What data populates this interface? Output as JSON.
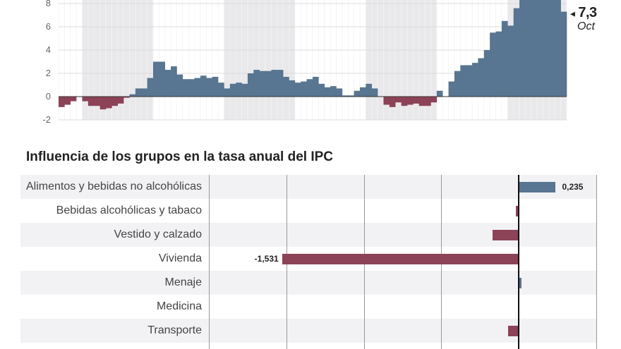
{
  "colors": {
    "positive": "#587591",
    "negative": "#8c4257",
    "recession_shade": "#e9e9eb",
    "grid": "#dcdcdc",
    "row_shade": "#f2f2f4"
  },
  "top_chart": {
    "last_value": "7,3",
    "last_month": "Oct",
    "y_ticks": [
      "8",
      "6",
      "4",
      "2",
      "0",
      "-2"
    ]
  },
  "bottom_chart": {
    "title": "Influencia de los grupos en la tasa anual del IPC",
    "rows": [
      {
        "label": "Alimentos y bebidas no alcohólicas",
        "value": 0.235,
        "value_label": "0,235"
      },
      {
        "label": "Bebidas alcohólicas y tabaco",
        "value": -0.02,
        "value_label": ""
      },
      {
        "label": "Vestido y calzado",
        "value": -0.17,
        "value_label": ""
      },
      {
        "label": "Vivienda",
        "value": -1.531,
        "value_label": "-1,531"
      },
      {
        "label": "Menaje",
        "value": 0.01,
        "value_label": ""
      },
      {
        "label": "Medicina",
        "value": 0.0,
        "value_label": ""
      },
      {
        "label": "Transporte",
        "value": -0.07,
        "value_label": ""
      }
    ]
  },
  "chart_data": [
    {
      "type": "bar",
      "title": "",
      "xlabel": "",
      "ylabel": "",
      "ylim": [
        -2,
        8.5
      ],
      "y_ticks": [
        -2,
        0,
        2,
        4,
        6,
        8
      ],
      "grid": true,
      "annotation": {
        "text": "7,3",
        "sublabel": "Oct"
      },
      "shaded_bands_bar_index": [
        [
          4,
          15
        ],
        [
          28,
          39
        ],
        [
          52,
          63
        ],
        [
          76,
          85
        ]
      ],
      "values": [
        -0.9,
        -0.7,
        -0.4,
        0.0,
        -0.4,
        -0.8,
        -0.8,
        -1.1,
        -1.0,
        -0.8,
        -0.6,
        -0.1,
        0.2,
        0.7,
        0.7,
        1.6,
        3.0,
        3.0,
        2.3,
        2.6,
        1.9,
        1.5,
        1.5,
        1.6,
        1.8,
        1.6,
        1.7,
        1.2,
        0.7,
        1.1,
        1.2,
        1.1,
        2.0,
        2.3,
        2.2,
        2.2,
        2.3,
        2.3,
        1.7,
        1.4,
        1.2,
        1.3,
        1.5,
        1.7,
        1.1,
        0.8,
        0.9,
        0.7,
        0.1,
        0.1,
        0.5,
        0.8,
        1.1,
        0.7,
        0.0,
        -0.7,
        -0.9,
        -0.5,
        -0.8,
        -0.7,
        -0.6,
        -0.8,
        -0.8,
        -0.5,
        0.5,
        0.0,
        1.3,
        2.2,
        2.7,
        2.7,
        2.9,
        3.3,
        4.0,
        5.5,
        5.6,
        6.5,
        6.1,
        7.6,
        9.8,
        8.3,
        10.2,
        10.2,
        9.0,
        8.9,
        10.8,
        7.3
      ]
    },
    {
      "type": "bar",
      "orientation": "horizontal",
      "title": "Influencia de los grupos en la tasa anual del IPC",
      "categories": [
        "Alimentos y bebidas no alcohólicas",
        "Bebidas alcohólicas y tabaco",
        "Vestido y calzado",
        "Vivienda",
        "Menaje",
        "Medicina",
        "Transporte"
      ],
      "values": [
        0.235,
        -0.02,
        -0.17,
        -1.531,
        0.01,
        0.0,
        -0.07
      ],
      "xlim": [
        -2.0,
        0.5
      ],
      "grid": true,
      "data_labels": {
        "Alimentos y bebidas no alcohólicas": "0,235",
        "Vivienda": "-1,531"
      }
    }
  ]
}
